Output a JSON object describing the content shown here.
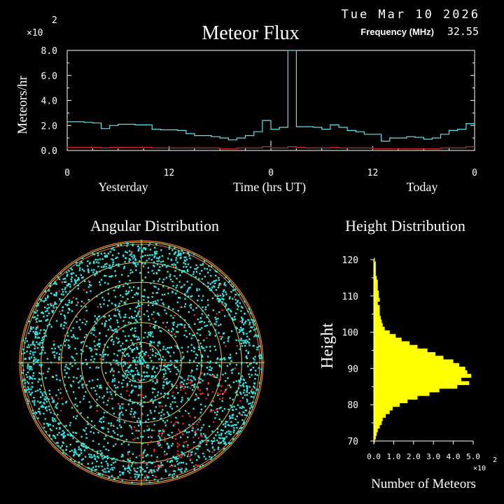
{
  "header": {
    "date": "Tue Mar 10 2026",
    "frequency_label": "Frequency (MHz)",
    "frequency_value": "32.55"
  },
  "colors": {
    "background": "#000000",
    "flux_total": "#5fe3e8",
    "flux_secondary": "#e0232a",
    "angular_dots_cyan": "#34e6e6",
    "angular_dots_red": "#ff2a2a",
    "angular_rings": "#e4d45a",
    "angular_outer_ring": "#f08030",
    "height_fill": "#ffff00",
    "axes": "#ffffff"
  },
  "chart_data": [
    {
      "type": "line",
      "id": "meteor-flux",
      "title": "Meteor Flux",
      "ylabel": "Meteors/hr",
      "y_multiplier": "×10",
      "y_exponent": "2",
      "xlabel": "Time (hrs UT)",
      "x_group_labels": [
        "Yesterday",
        "Today"
      ],
      "x_ticks": [
        "0",
        "12",
        "0",
        "12",
        "0"
      ],
      "y_ticks": [
        "0.0",
        "2.0",
        "4.0",
        "6.0",
        "8.0"
      ],
      "ylim": [
        0,
        8.0
      ],
      "xlim": [
        0,
        48
      ],
      "step": true,
      "series": [
        {
          "color": "#5fe3e8",
          "x": [
            0,
            1,
            2,
            3,
            4,
            5,
            6,
            7,
            8,
            9,
            10,
            11,
            12,
            13,
            14,
            15,
            16,
            17,
            18,
            19,
            20,
            21,
            22,
            23,
            24,
            25,
            26,
            27,
            28,
            29,
            30,
            31,
            32,
            33,
            34,
            35,
            36,
            37,
            38,
            39,
            40,
            41,
            42,
            43,
            44,
            45,
            46,
            47,
            48
          ],
          "y": [
            2.3,
            2.3,
            2.25,
            2.2,
            1.75,
            2.0,
            2.1,
            2.1,
            2.05,
            2.05,
            1.7,
            1.65,
            1.65,
            1.6,
            1.35,
            1.2,
            1.2,
            1.1,
            1.0,
            0.85,
            1.0,
            1.2,
            1.5,
            2.4,
            1.7,
            1.85,
            8.0,
            1.9,
            1.9,
            1.85,
            1.7,
            2.05,
            1.85,
            1.6,
            1.5,
            1.3,
            1.3,
            0.75,
            1.0,
            1.0,
            1.1,
            1.05,
            0.9,
            1.0,
            1.3,
            1.6,
            1.7,
            2.15,
            2.15
          ]
        },
        {
          "color": "#e0232a",
          "x": [
            0,
            1,
            2,
            3,
            4,
            5,
            6,
            7,
            8,
            9,
            10,
            11,
            12,
            13,
            14,
            15,
            16,
            17,
            18,
            19,
            20,
            21,
            22,
            23,
            24,
            25,
            26,
            27,
            28,
            29,
            30,
            31,
            32,
            33,
            34,
            35,
            36,
            37,
            38,
            39,
            40,
            41,
            42,
            43,
            44,
            45,
            46,
            47,
            48
          ],
          "y": [
            0.25,
            0.25,
            0.25,
            0.25,
            0.2,
            0.25,
            0.25,
            0.25,
            0.25,
            0.25,
            0.2,
            0.2,
            0.2,
            0.2,
            0.2,
            0.2,
            0.2,
            0.2,
            0.15,
            0.15,
            0.2,
            0.2,
            0.2,
            0.3,
            0.2,
            0.2,
            0.3,
            0.25,
            0.2,
            0.2,
            0.2,
            0.25,
            0.2,
            0.2,
            0.2,
            0.2,
            0.15,
            0.15,
            0.15,
            0.15,
            0.15,
            0.15,
            0.15,
            0.15,
            0.2,
            0.2,
            0.2,
            0.3,
            0.3
          ]
        }
      ]
    },
    {
      "type": "scatter",
      "id": "angular-distribution",
      "title": "Angular Distribution",
      "projection": "polar",
      "rings": 6,
      "grid": true,
      "series": [
        {
          "color": "#34e6e6",
          "count": 2600
        },
        {
          "color": "#ff2a2a",
          "count": 260
        }
      ]
    },
    {
      "type": "bar",
      "id": "height-distribution",
      "orientation": "horizontal",
      "title": "Height Distribution",
      "ylabel": "Height",
      "xlabel": "Number of Meteors",
      "x_multiplier": "×10",
      "x_exponent": "2",
      "x_ticks": [
        "0.0",
        "1.0",
        "2.0",
        "3.0",
        "4.0",
        "5.0"
      ],
      "y_ticks": [
        "70",
        "80",
        "90",
        "100",
        "110",
        "120"
      ],
      "xlim": [
        0,
        5.0
      ],
      "ylim": [
        70,
        120
      ],
      "heights": [
        70,
        71,
        72,
        73,
        74,
        75,
        76,
        77,
        78,
        79,
        80,
        81,
        82,
        83,
        84,
        85,
        86,
        87,
        88,
        89,
        90,
        91,
        92,
        93,
        94,
        95,
        96,
        97,
        98,
        99,
        100,
        101,
        102,
        103,
        104,
        105,
        106,
        107,
        108,
        109,
        110,
        111,
        112,
        113,
        114,
        115,
        116,
        117,
        118,
        119,
        120
      ],
      "values": [
        0.05,
        0.1,
        0.15,
        0.2,
        0.3,
        0.4,
        0.45,
        0.6,
        0.8,
        0.95,
        1.3,
        1.7,
        2.2,
        2.8,
        3.3,
        4.2,
        4.8,
        4.4,
        4.9,
        4.7,
        4.6,
        4.3,
        4.0,
        3.5,
        3.1,
        2.7,
        2.2,
        1.8,
        1.4,
        1.1,
        0.8,
        0.55,
        0.45,
        0.4,
        0.35,
        0.3,
        0.3,
        0.3,
        0.2,
        0.3,
        0.25,
        0.25,
        0.2,
        0.2,
        0.2,
        0.15,
        0.1,
        0.1,
        0.1,
        0.1,
        0.05
      ]
    }
  ]
}
